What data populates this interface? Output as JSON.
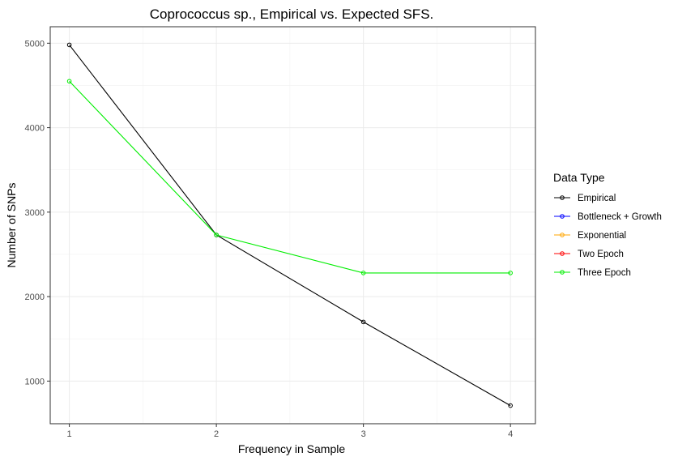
{
  "chart_data": {
    "type": "line",
    "title": "Coprococcus sp., Empirical vs. Expected SFS.",
    "xlabel": "Frequency in Sample",
    "ylabel": "Number of SNPs",
    "x": [
      1,
      2,
      3,
      4
    ],
    "xticks": [
      "1",
      "2",
      "3",
      "4"
    ],
    "yticks": [
      "1000",
      "2000",
      "3000",
      "4000",
      "5000"
    ],
    "xlim": [
      0.87,
      4.17
    ],
    "ylim": [
      495,
      5195
    ],
    "grid": true,
    "legend": {
      "title": "Data Type",
      "placement": "right",
      "entries": [
        {
          "name": "Empirical",
          "color": "#000000"
        },
        {
          "name": "Bottleneck + Growth",
          "color": "#0000ff"
        },
        {
          "name": "Exponential",
          "color": "#ffa500"
        },
        {
          "name": "Two Epoch",
          "color": "#ff0000"
        },
        {
          "name": "Three Epoch",
          "color": "#00ee00"
        }
      ]
    },
    "series": [
      {
        "name": "Empirical",
        "color": "#000000",
        "values": [
          4980,
          2730,
          1700,
          710
        ]
      },
      {
        "name": "Three Epoch",
        "color": "#00ee00",
        "values": [
          4550,
          2730,
          2280,
          2280
        ]
      }
    ]
  }
}
